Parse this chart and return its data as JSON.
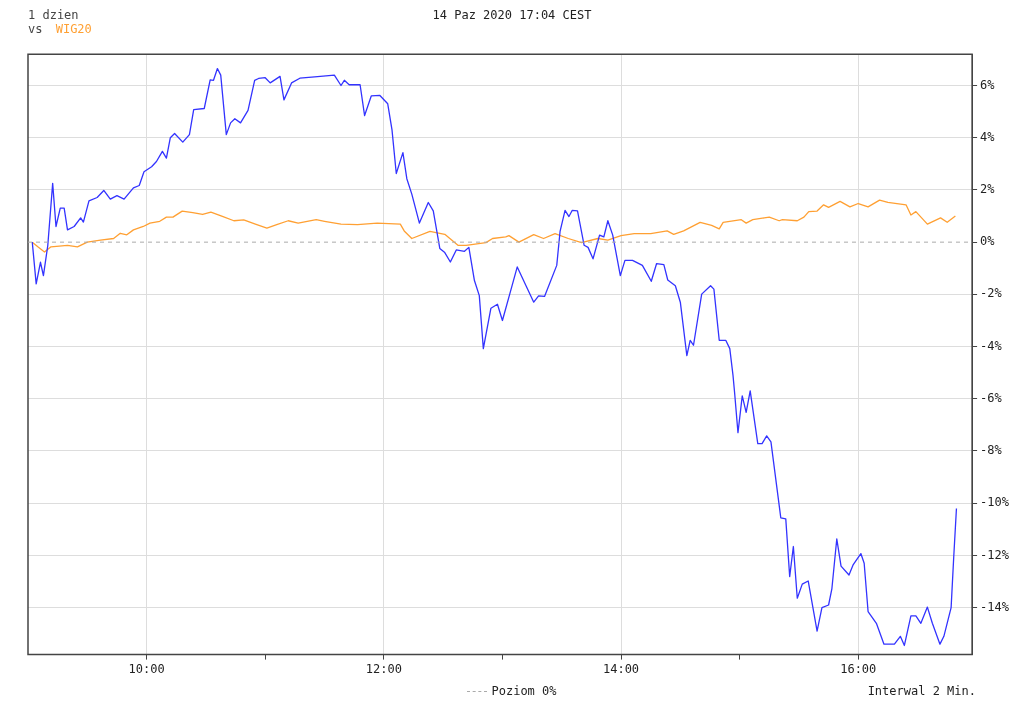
{
  "chart_data": {
    "type": "line",
    "title": "1 dzien",
    "subtitle": "14 Paz 2020 17:04 CEST",
    "annotations": [
      "vs",
      "Interwal 2 Min."
    ],
    "legend": "bottom",
    "grid": true,
    "marker": "none",
    "line_style": "solid",
    "xlim": [
      9,
      16.96
    ],
    "xticks": [
      {
        "value": 10,
        "label": "10:00"
      },
      {
        "value": 11,
        "label": null
      },
      {
        "value": 12,
        "label": "12:00"
      },
      {
        "value": 13,
        "label": null
      },
      {
        "value": 14,
        "label": "14:00"
      },
      {
        "value": 15,
        "label": null
      },
      {
        "value": 16,
        "label": "16:00"
      }
    ],
    "ylim": [
      -15.8,
      7.2
    ],
    "yticks": [
      {
        "value": -14,
        "label": "-14%"
      },
      {
        "value": -12,
        "label": "-12%"
      },
      {
        "value": -10,
        "label": "-10%"
      },
      {
        "value": -8,
        "label": "-8%"
      },
      {
        "value": -6,
        "label": "-6%"
      },
      {
        "value": -4,
        "label": "-4%"
      },
      {
        "value": -2,
        "label": "-2%"
      },
      {
        "value": 0,
        "label": "0%"
      },
      {
        "value": 2,
        "label": "2%"
      },
      {
        "value": 4,
        "label": "4%"
      },
      {
        "value": 6,
        "label": "6%"
      }
    ],
    "ref_lines": [
      {
        "axis": "y",
        "value": 0,
        "label": "Poziom 0%",
        "color": "#aaaaaa",
        "line_style": "dashed"
      }
    ],
    "series": [
      {
        "color": "#3333ff",
        "x": [
          9.036,
          9.069,
          9.105,
          9.13,
          9.167,
          9.208,
          9.236,
          9.272,
          9.305,
          9.333,
          9.389,
          9.444,
          9.467,
          9.514,
          9.583,
          9.639,
          9.694,
          9.75,
          9.81,
          9.889,
          9.938,
          9.978,
          10.042,
          10.083,
          10.133,
          10.167,
          10.2,
          10.236,
          10.305,
          10.361,
          10.397,
          10.486,
          10.536,
          10.564,
          10.597,
          10.625,
          10.672,
          10.708,
          10.744,
          10.792,
          10.855,
          10.911,
          10.944,
          11.0,
          11.042,
          11.125,
          11.158,
          11.222,
          11.292,
          11.417,
          11.583,
          11.639,
          11.667,
          11.708,
          11.8,
          11.838,
          11.894,
          11.967,
          12.033,
          12.069,
          12.105,
          12.161,
          12.194,
          12.236,
          12.3,
          12.375,
          12.417,
          12.472,
          12.514,
          12.561,
          12.611,
          12.68,
          12.717,
          12.764,
          12.805,
          12.839,
          12.903,
          12.958,
          13.0,
          13.125,
          13.264,
          13.305,
          13.355,
          13.458,
          13.486,
          13.528,
          13.561,
          13.589,
          13.633,
          13.689,
          13.722,
          13.764,
          13.819,
          13.855,
          13.889,
          13.93,
          13.994,
          14.033,
          14.097,
          14.18,
          14.255,
          14.3,
          14.361,
          14.394,
          14.458,
          14.5,
          14.555,
          14.583,
          14.611,
          14.68,
          14.755,
          14.783,
          14.828,
          14.883,
          14.917,
          14.944,
          14.958,
          14.986,
          15.022,
          15.055,
          15.089,
          15.153,
          15.189,
          15.228,
          15.264,
          15.347,
          15.389,
          15.422,
          15.453,
          15.486,
          15.528,
          15.578,
          15.653,
          15.694,
          15.75,
          15.778,
          15.819,
          15.855,
          15.922,
          15.958,
          16.022,
          16.05,
          16.083,
          16.153,
          16.217,
          16.305,
          16.355,
          16.389,
          16.444,
          16.486,
          16.528,
          16.583,
          16.625,
          16.689,
          16.722,
          16.783,
          16.805,
          16.828
        ],
        "values": [
          0.0,
          -1.6,
          -0.77,
          -1.28,
          -0.12,
          2.25,
          0.6,
          1.3,
          1.3,
          0.47,
          0.6,
          0.93,
          0.77,
          1.58,
          1.71,
          1.98,
          1.65,
          1.78,
          1.65,
          2.08,
          2.17,
          2.7,
          2.89,
          3.09,
          3.48,
          3.22,
          4.0,
          4.16,
          3.83,
          4.12,
          5.08,
          5.12,
          6.22,
          6.2,
          6.65,
          6.4,
          4.12,
          4.57,
          4.73,
          4.57,
          5.05,
          6.2,
          6.27,
          6.3,
          6.1,
          6.35,
          5.45,
          6.1,
          6.28,
          6.33,
          6.4,
          6.0,
          6.2,
          6.03,
          6.03,
          4.85,
          5.6,
          5.62,
          5.3,
          4.3,
          2.63,
          3.43,
          2.43,
          1.84,
          0.73,
          1.52,
          1.2,
          -0.24,
          -0.4,
          -0.76,
          -0.3,
          -0.35,
          -0.2,
          -1.47,
          -2.05,
          -4.08,
          -2.53,
          -2.38,
          -3.0,
          -0.95,
          -2.3,
          -2.06,
          -2.08,
          -0.89,
          0.41,
          1.22,
          0.98,
          1.22,
          1.2,
          -0.12,
          -0.2,
          -0.64,
          0.27,
          0.2,
          0.82,
          0.27,
          -1.28,
          -0.7,
          -0.7,
          -0.89,
          -1.5,
          -0.82,
          -0.86,
          -1.45,
          -1.67,
          -2.3,
          -4.35,
          -3.76,
          -3.95,
          -1.99,
          -1.67,
          -1.8,
          -3.76,
          -3.76,
          -4.08,
          -5.1,
          -5.79,
          -7.3,
          -5.89,
          -6.52,
          -5.7,
          -7.72,
          -7.72,
          -7.42,
          -7.65,
          -10.56,
          -10.6,
          -12.81,
          -11.66,
          -13.64,
          -13.1,
          -12.98,
          -14.9,
          -14.0,
          -13.9,
          -13.27,
          -11.37,
          -12.41,
          -12.75,
          -12.35,
          -11.93,
          -12.3,
          -14.15,
          -14.6,
          -15.4,
          -15.4,
          -15.1,
          -15.45,
          -14.32,
          -14.32,
          -14.6,
          -13.98,
          -14.6,
          -15.4,
          -15.1,
          -14.0,
          -12.07,
          -10.2
        ]
      },
      {
        "name": "WIG20",
        "color": "#ffa033",
        "x": [
          9.036,
          9.083,
          9.139,
          9.194,
          9.333,
          9.417,
          9.5,
          9.611,
          9.722,
          9.778,
          9.833,
          9.889,
          9.972,
          10.028,
          10.111,
          10.167,
          10.222,
          10.3,
          10.389,
          10.472,
          10.542,
          10.639,
          10.736,
          10.819,
          10.917,
          11.014,
          11.097,
          11.194,
          11.278,
          11.43,
          11.5,
          11.639,
          11.778,
          11.944,
          12.139,
          12.172,
          12.236,
          12.389,
          12.514,
          12.625,
          12.694,
          12.861,
          12.917,
          13.028,
          13.055,
          13.139,
          13.264,
          13.347,
          13.444,
          13.555,
          13.667,
          13.805,
          13.889,
          14.0,
          14.111,
          14.25,
          14.389,
          14.444,
          14.528,
          14.667,
          14.764,
          14.828,
          14.861,
          15.014,
          15.055,
          15.111,
          15.208,
          15.25,
          15.333,
          15.361,
          15.486,
          15.542,
          15.583,
          15.653,
          15.708,
          15.75,
          15.847,
          15.93,
          16.0,
          16.083,
          16.18,
          16.25,
          16.403,
          16.444,
          16.486,
          16.583,
          16.694,
          16.75,
          16.819
        ],
        "values": [
          0.0,
          -0.18,
          -0.38,
          -0.18,
          -0.12,
          -0.18,
          0.0,
          0.08,
          0.14,
          0.34,
          0.28,
          0.47,
          0.6,
          0.73,
          0.8,
          0.96,
          0.96,
          1.19,
          1.13,
          1.06,
          1.15,
          0.99,
          0.82,
          0.85,
          0.69,
          0.54,
          0.67,
          0.82,
          0.73,
          0.86,
          0.8,
          0.69,
          0.67,
          0.73,
          0.69,
          0.43,
          0.14,
          0.41,
          0.3,
          -0.12,
          -0.12,
          -0.02,
          0.14,
          0.2,
          0.25,
          0.0,
          0.29,
          0.14,
          0.33,
          0.14,
          -0.02,
          0.14,
          0.08,
          0.25,
          0.33,
          0.33,
          0.43,
          0.3,
          0.43,
          0.76,
          0.64,
          0.51,
          0.76,
          0.86,
          0.73,
          0.86,
          0.93,
          0.96,
          0.82,
          0.86,
          0.82,
          0.96,
          1.17,
          1.19,
          1.43,
          1.33,
          1.56,
          1.35,
          1.48,
          1.35,
          1.61,
          1.52,
          1.43,
          1.04,
          1.17,
          0.69,
          0.93,
          0.76,
          1.0
        ]
      }
    ]
  }
}
